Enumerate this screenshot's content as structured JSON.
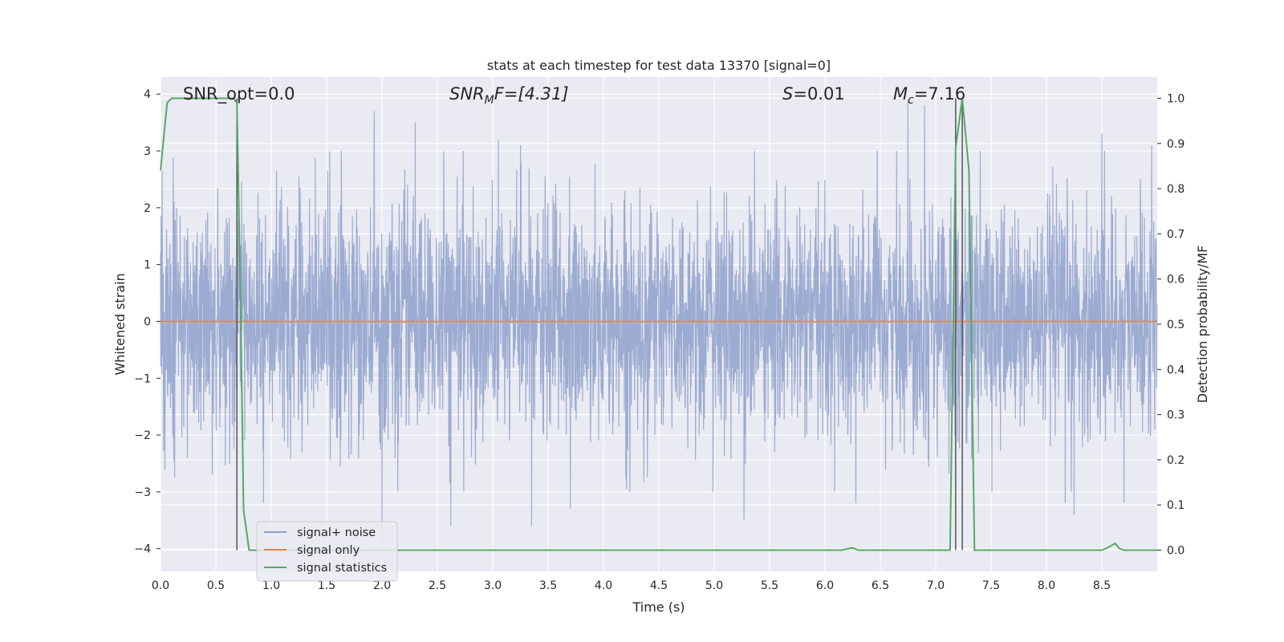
{
  "chart_data": {
    "type": "line",
    "title": "stats at each timestep for test data 13370 [signal=0]",
    "xlabel": "Time (s)",
    "ylabel": "Whitened strain",
    "y2label": "Detection probability/MF",
    "xlim": [
      0.0,
      9.0
    ],
    "ylim": [
      -4.4,
      4.3
    ],
    "y2lim": [
      -0.047,
      1.047
    ],
    "xticks": [
      0.0,
      0.5,
      1.0,
      1.5,
      2.0,
      2.5,
      3.0,
      3.5,
      4.0,
      4.5,
      5.0,
      5.5,
      6.0,
      6.5,
      7.0,
      7.5,
      8.0,
      8.5
    ],
    "xtick_labels": [
      "0.0",
      "0.5",
      "1.0",
      "1.5",
      "2.0",
      "2.5",
      "3.0",
      "3.5",
      "4.0",
      "4.5",
      "5.0",
      "5.5",
      "6.0",
      "6.5",
      "7.0",
      "7.5",
      "8.0",
      "8.5"
    ],
    "yticks": [
      4,
      3,
      2,
      1,
      0,
      -1,
      -2,
      -3,
      -4
    ],
    "ytick_labels": [
      "4",
      "3",
      "2",
      "1",
      "0",
      "−1",
      "−2",
      "−3",
      "−4"
    ],
    "y2ticks": [
      1.0,
      0.9,
      0.8,
      0.7,
      0.6,
      0.5,
      0.4,
      0.3,
      0.2,
      0.1,
      0.0
    ],
    "y2tick_labels": [
      "1.0",
      "0.9",
      "0.8",
      "0.7",
      "0.6",
      "0.5",
      "0.4",
      "0.3",
      "0.2",
      "0.1",
      "0.0"
    ],
    "grid": true,
    "legend_placement": "lower-left",
    "annotations": {
      "snr_opt": "SNR_opt=0.0",
      "snr_mf_sym": "SNR",
      "snr_mf_sub": "M",
      "snr_mf_rest": "F=[4.31]",
      "s_sym": "S",
      "s_rest": "=0.01",
      "mc_sym": "M",
      "mc_sub": "c",
      "mc_rest": "=7.16"
    },
    "vlines": [
      0.69,
      7.18,
      7.24
    ],
    "series": [
      {
        "name": "signal+ noise",
        "color": "#8da0cb",
        "axis": "left",
        "style": "noise",
        "amplitude_sigma": 1.0,
        "spikes": [
          [
            1.93,
            3.7
          ],
          [
            2.3,
            3.5
          ],
          [
            3.05,
            3.2
          ],
          [
            3.25,
            3.1
          ],
          [
            6.75,
            3.9
          ],
          [
            6.9,
            3.8
          ],
          [
            8.5,
            3.3
          ],
          [
            8.7,
            3.4
          ],
          [
            8.95,
            3.1
          ],
          [
            0.93,
            -3.2
          ],
          [
            2.0,
            -3.9
          ],
          [
            2.62,
            -3.6
          ],
          [
            3.35,
            -3.6
          ],
          [
            3.7,
            -3.3
          ],
          [
            5.27,
            -3.5
          ],
          [
            6.28,
            -3.2
          ],
          [
            8.17,
            -3.2
          ],
          [
            8.25,
            -3.4
          ],
          [
            8.7,
            -3.2
          ]
        ]
      },
      {
        "name": "signal only",
        "color": "#dd8452",
        "axis": "left",
        "x": [
          0.0,
          9.0
        ],
        "y": [
          0.0,
          0.0
        ]
      },
      {
        "name": "signal statistics",
        "color": "#55a868",
        "axis": "right",
        "x": [
          0.0,
          0.06,
          0.1,
          0.2,
          0.3,
          0.4,
          0.5,
          0.6,
          0.66,
          0.69,
          0.72,
          0.75,
          0.8,
          1.0,
          2.0,
          3.0,
          4.0,
          5.0,
          6.0,
          6.15,
          6.25,
          6.3,
          6.5,
          7.0,
          7.13,
          7.18,
          7.24,
          7.3,
          7.35,
          7.4,
          7.5,
          8.0,
          8.5,
          8.55,
          8.62,
          8.66,
          8.7,
          9.0
        ],
        "y": [
          0.84,
          0.99,
          1.0,
          1.0,
          1.0,
          1.0,
          1.0,
          1.0,
          1.0,
          0.99,
          0.59,
          0.09,
          0.0,
          0.0,
          0.0,
          0.0,
          0.0,
          0.0,
          0.0,
          0.0,
          0.005,
          0.0,
          0.0,
          0.0,
          0.0,
          0.89,
          1.0,
          0.84,
          0.0,
          0.0,
          0.0,
          0.0,
          0.0,
          0.005,
          0.015,
          0.003,
          0.0,
          0.0
        ]
      }
    ]
  }
}
